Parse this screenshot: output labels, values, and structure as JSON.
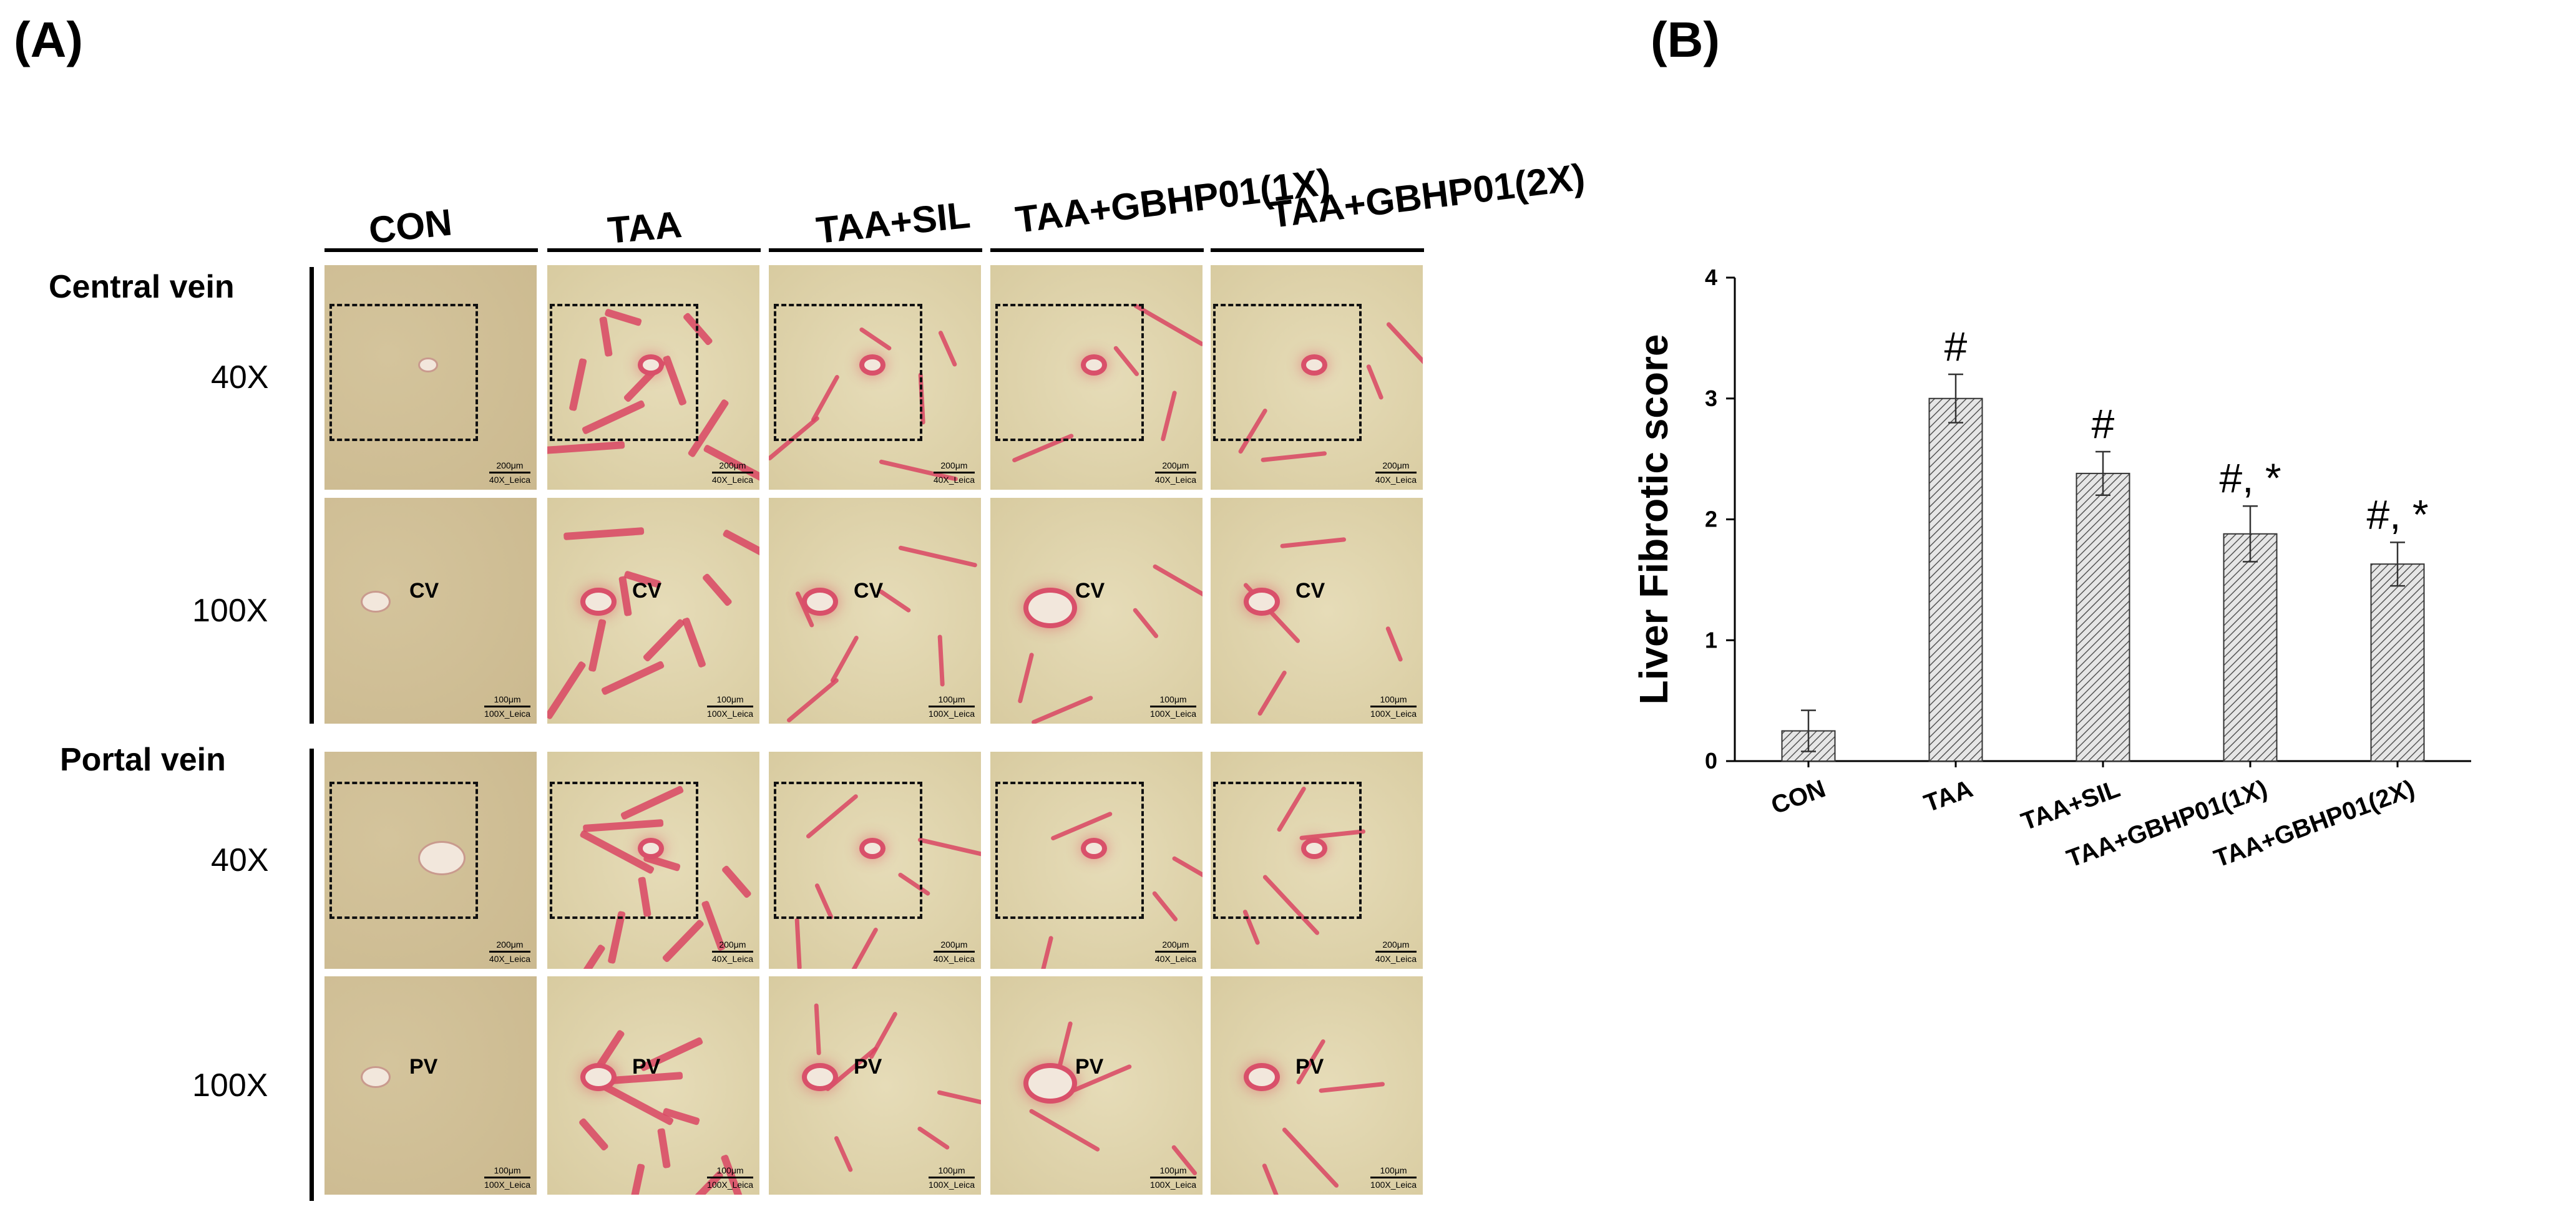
{
  "panels": {
    "a_label": "(A)",
    "b_label": "(B)"
  },
  "histology": {
    "columns": [
      "CON",
      "TAA",
      "TAA+SIL",
      "TAA+GBHP01(1X)",
      "TAA+GBHP01(2X)"
    ],
    "sections": [
      {
        "title": "Central vein",
        "rows": [
          {
            "magnification": "40X",
            "scale_text": "200μm",
            "scale_sub": "40X_Leica"
          },
          {
            "magnification": "100X",
            "scale_text": "100μm",
            "scale_sub": "100X_Leica",
            "vessel_label": "CV"
          }
        ]
      },
      {
        "title": "Portal vein",
        "rows": [
          {
            "magnification": "40X",
            "scale_text": "200μm",
            "scale_sub": "40X_Leica"
          },
          {
            "magnification": "100X",
            "scale_text": "100μm",
            "scale_sub": "100X_Leica",
            "vessel_label": "PV"
          }
        ]
      }
    ],
    "colors": {
      "tissue_con": "#cbb98f",
      "tissue": "#d8cba0",
      "collagen": "#d94563"
    }
  },
  "chart_data": {
    "type": "bar",
    "categories": [
      "CON",
      "TAA",
      "TAA+SIL",
      "TAA+GBHP01(1X)",
      "TAA+GBHP01(2X)"
    ],
    "values": [
      0.25,
      3.0,
      2.38,
      1.88,
      1.63
    ],
    "errors": [
      0.17,
      0.2,
      0.18,
      0.23,
      0.18
    ],
    "annotations": [
      "",
      "#",
      "#",
      "#, *",
      "#, *"
    ],
    "title": "",
    "xlabel": "",
    "ylabel": "Liver Fibrotic score",
    "ylim": [
      0,
      4
    ],
    "yticks": [
      0,
      1,
      2,
      3,
      4
    ],
    "grid": false,
    "bar_fill": "hatched-gray"
  }
}
